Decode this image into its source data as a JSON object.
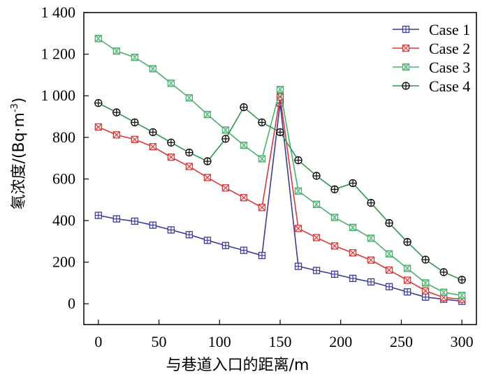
{
  "chart_data": {
    "type": "line",
    "xlabel": "与巷道入口的距离/m",
    "ylabel": "氡浓度/(Bq·m",
    "ylabel_sup": "-3",
    "ylabel_close": ")",
    "xlim": [
      -12,
      312
    ],
    "ylim": [
      -100,
      1400
    ],
    "xticks": [
      0,
      50,
      100,
      150,
      200,
      250,
      300
    ],
    "yticks": [
      0,
      200,
      400,
      600,
      800,
      1000,
      1200,
      1400
    ],
    "ytick_labels": [
      "0",
      "200",
      "400",
      "600",
      "800",
      "1 000",
      "1 200",
      "1 400"
    ],
    "legend_position": "top-right",
    "x": [
      0,
      15,
      30,
      45,
      60,
      75,
      90,
      105,
      120,
      135,
      150,
      165,
      180,
      195,
      210,
      225,
      240,
      255,
      270,
      285,
      300
    ],
    "series": [
      {
        "name": "Case 1",
        "color": "#3a3a9c",
        "marker": "square-plus",
        "values": [
          425,
          408,
          397,
          378,
          355,
          332,
          305,
          280,
          257,
          232,
          965,
          180,
          160,
          142,
          122,
          105,
          82,
          57,
          32,
          22,
          12
        ]
      },
      {
        "name": "Case 2",
        "color": "#e03535",
        "marker": "square-x",
        "values": [
          850,
          812,
          790,
          755,
          705,
          660,
          607,
          557,
          510,
          463,
          995,
          362,
          318,
          278,
          245,
          210,
          162,
          113,
          62,
          30,
          22
        ]
      },
      {
        "name": "Case 3",
        "color": "#4caf6e",
        "marker": "square-hourglass",
        "values": [
          1275,
          1215,
          1185,
          1130,
          1060,
          990,
          910,
          835,
          762,
          697,
          1030,
          542,
          478,
          415,
          367,
          315,
          240,
          170,
          100,
          55,
          40
        ]
      },
      {
        "name": "Case 4",
        "color": "#2b9a4a",
        "marker": "circle-plus",
        "values": [
          965,
          920,
          872,
          825,
          775,
          727,
          685,
          793,
          945,
          872,
          825,
          690,
          615,
          550,
          580,
          485,
          388,
          297,
          212,
          152,
          115
        ]
      }
    ]
  }
}
